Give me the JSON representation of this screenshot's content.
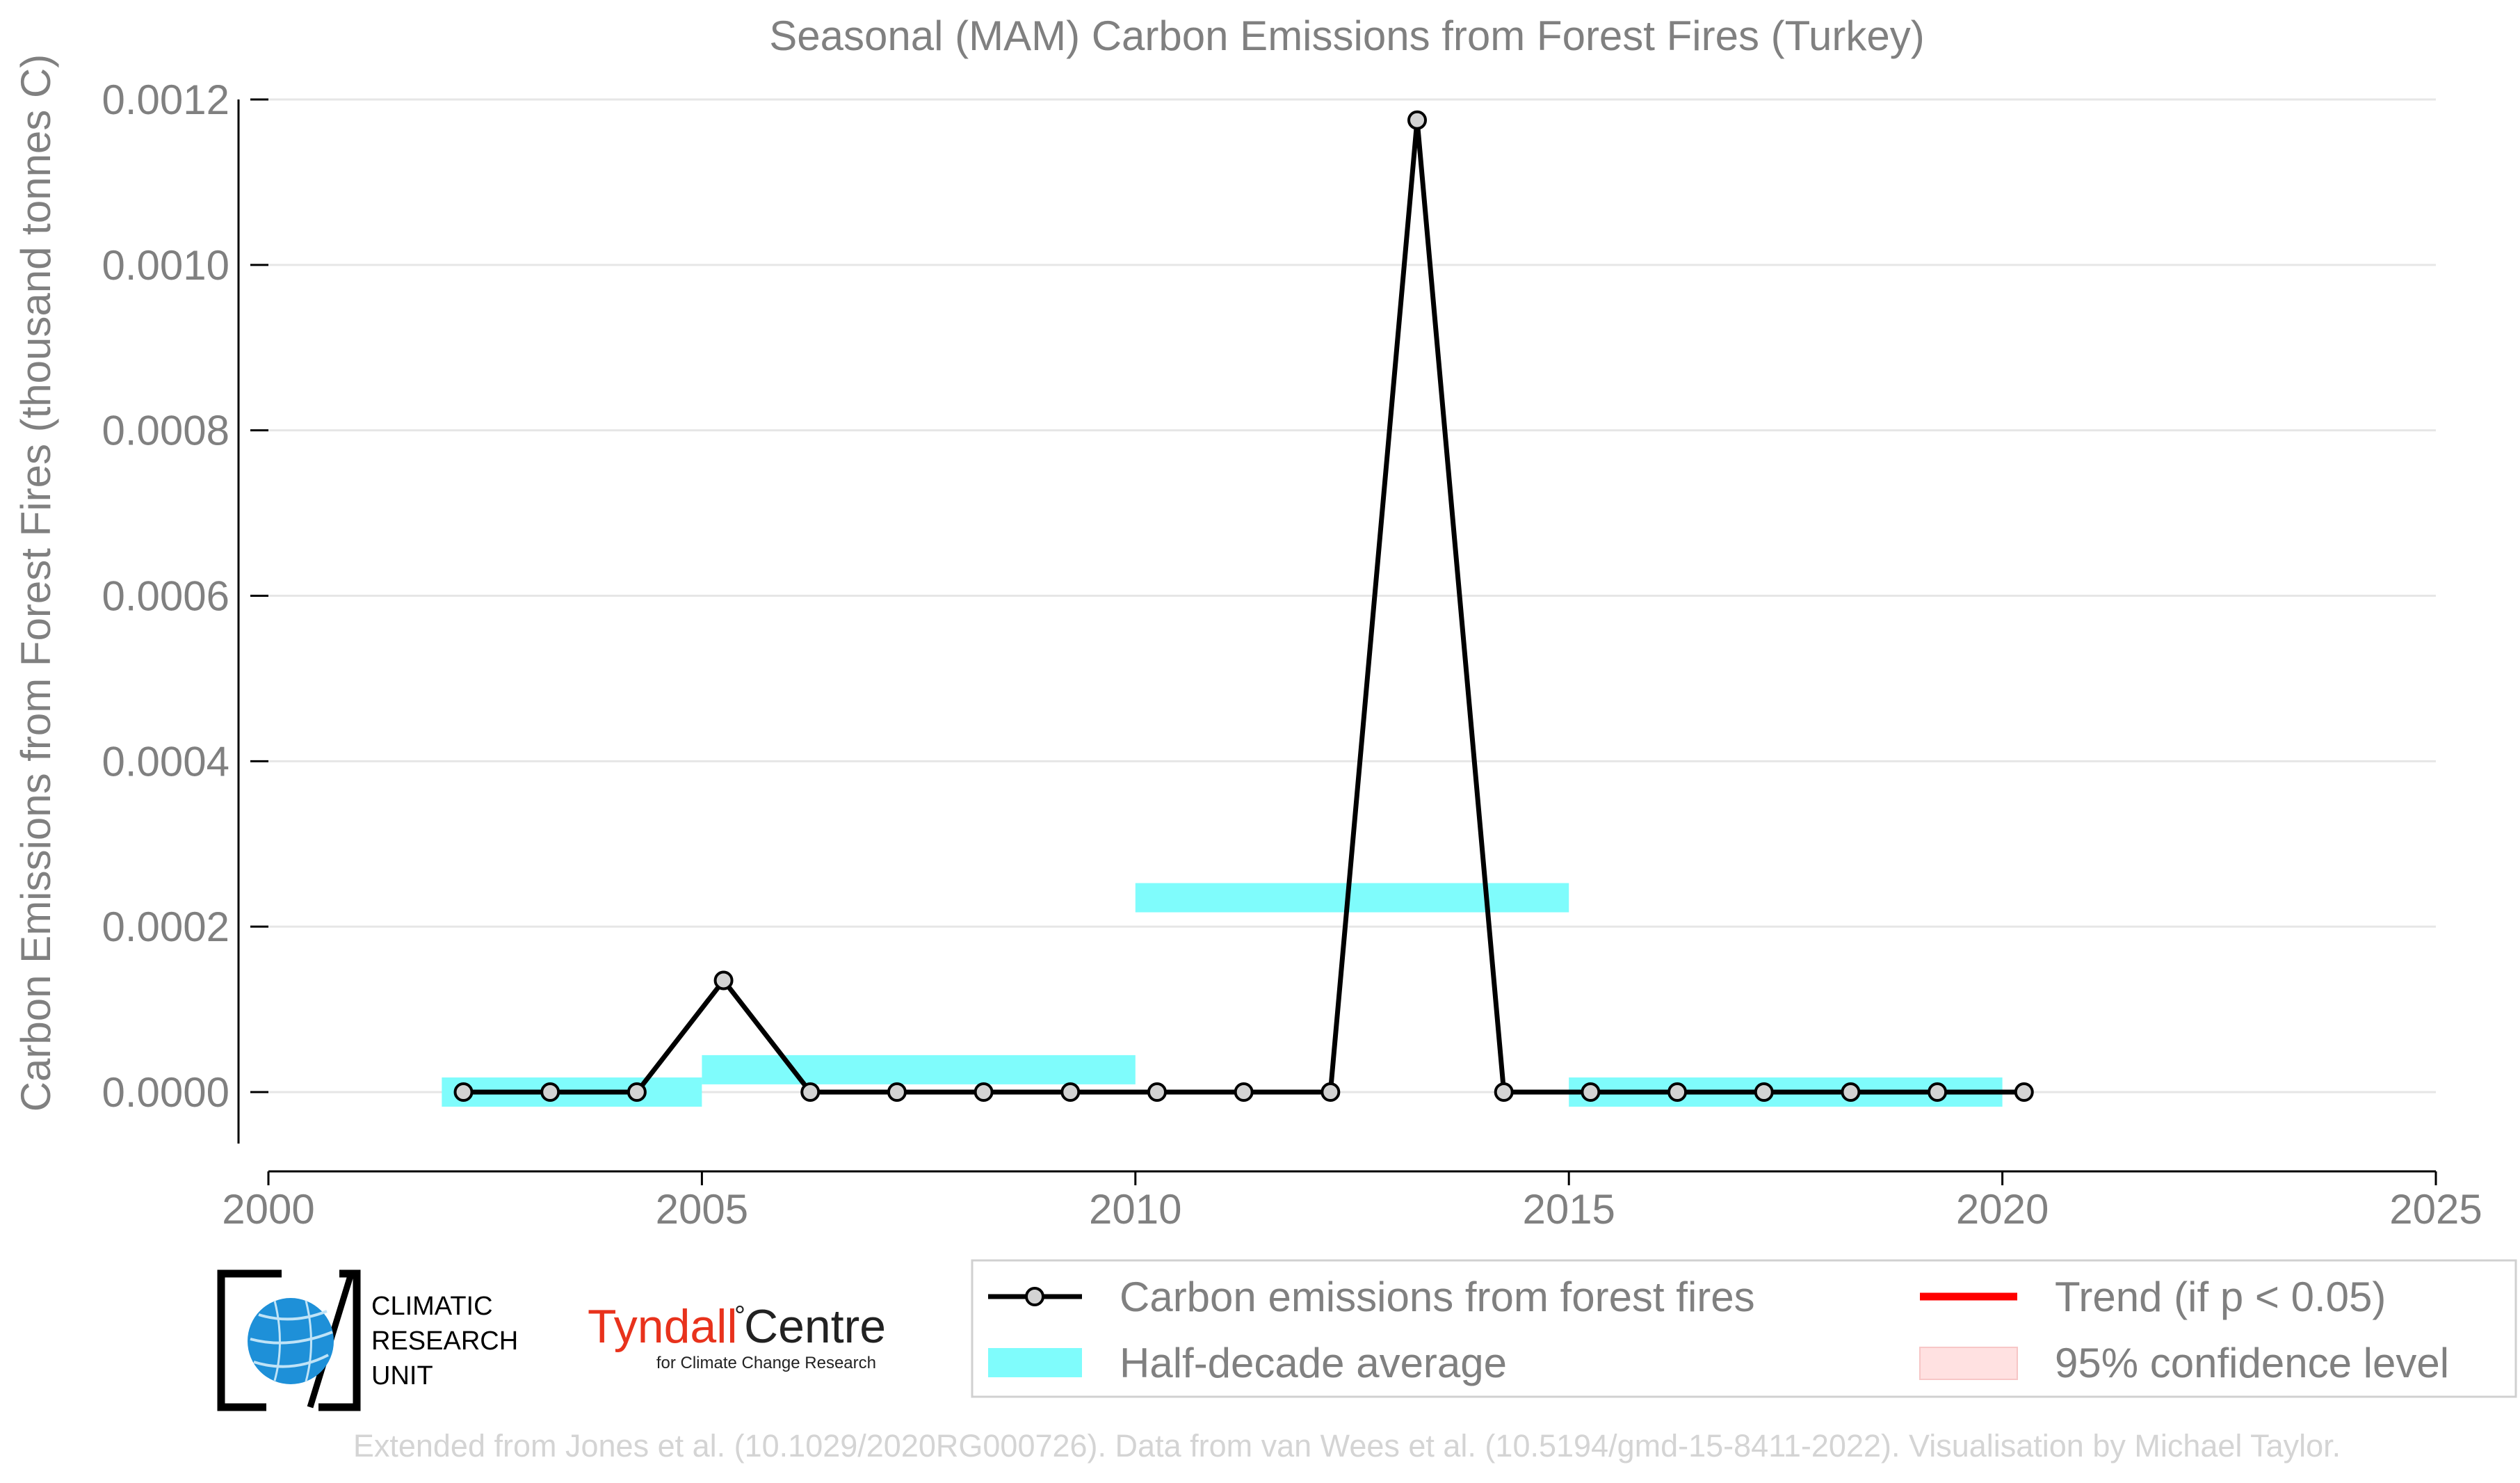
{
  "chart_data": {
    "type": "line",
    "title": "Seasonal (MAM) Carbon Emissions from Forest Fires (Turkey)",
    "xlabel": "",
    "ylabel": "Carbon Emissions from Forest Fires (thousand tonnes C)",
    "xlim": [
      2000,
      2025
    ],
    "ylim": [
      -9e-05,
      0.0012
    ],
    "x_ticks": [
      "2000",
      "2005",
      "2010",
      "2015",
      "2020",
      "2025"
    ],
    "y_ticks": [
      "0.0000",
      "0.0002",
      "0.0004",
      "0.0006",
      "0.0008",
      "0.0010",
      "0.0012"
    ],
    "grid": "horizontal",
    "series": [
      {
        "name": "Carbon emissions from forest fires",
        "color": "#000000",
        "marker_fill": "#d3d3d3",
        "x": [
          2002.25,
          2003.25,
          2004.25,
          2005.25,
          2006.25,
          2007.25,
          2008.25,
          2009.25,
          2010.25,
          2011.25,
          2012.25,
          2013.25,
          2014.25,
          2015.25,
          2016.25,
          2017.25,
          2018.25,
          2019.25,
          2020.25
        ],
        "values": [
          0,
          0,
          0,
          0.000135,
          0,
          0,
          0,
          0,
          0,
          0,
          0,
          0.001175,
          0,
          0,
          0,
          0,
          0,
          0,
          0
        ]
      }
    ],
    "half_decade_average": {
      "name": "Half-decade average",
      "color": "#7ffcfc",
      "segments": [
        {
          "x_start": 2002,
          "x_end": 2005,
          "value": 0
        },
        {
          "x_start": 2005,
          "x_end": 2010,
          "value": 2.7e-05
        },
        {
          "x_start": 2010,
          "x_end": 2015,
          "value": 0.000235
        },
        {
          "x_start": 2015,
          "x_end": 2020,
          "value": 0
        }
      ]
    },
    "legend": {
      "placement": "bottom-right",
      "entries": [
        {
          "label": "Carbon emissions from forest fires",
          "kind": "line-marker",
          "color": "#000000"
        },
        {
          "label": "Trend (if p < 0.05)",
          "kind": "line",
          "color": "#ff0000"
        },
        {
          "label": "Half-decade average",
          "kind": "band",
          "color": "#7ffcfc"
        },
        {
          "label": "95% confidence level",
          "kind": "patch",
          "color": "#ffdada"
        }
      ]
    }
  },
  "logos": {
    "cru": {
      "line1": "CLIMATIC",
      "line2": "RESEARCH",
      "line3": "UNIT"
    },
    "tyndall": {
      "name_red": "Tyndall",
      "degree": "°",
      "name_dark": "Centre",
      "subtitle": "for Climate Change Research"
    }
  },
  "footer": {
    "credit": "Extended from Jones et al. (10.1029/2020RG000726). Data from van Wees et al. (10.5194/gmd-15-8411-2022). Visualisation by Michael Taylor."
  }
}
